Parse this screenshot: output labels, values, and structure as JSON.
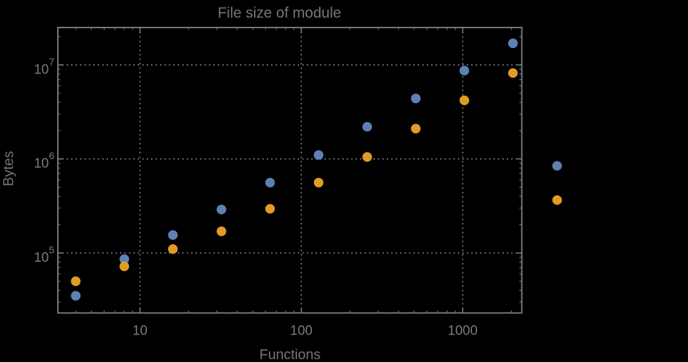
{
  "chart_data": {
    "type": "scatter",
    "title": "File size of module",
    "xlabel": "Functions",
    "ylabel": "Bytes",
    "x_scale": "log",
    "y_scale": "log",
    "xlim": [
      3.1,
      2325
    ],
    "ylim": [
      23000,
      25000000
    ],
    "grid": "dotted gray lines at major ticks only, frame on all four sides with mirrored ticks",
    "x_major_ticks": [
      10,
      100,
      1000
    ],
    "x_major_tick_labels": [
      "10",
      "100",
      "1000"
    ],
    "y_major_ticks": [
      100000,
      1000000,
      10000000
    ],
    "y_tick_base": "10",
    "y_major_tick_exponents": [
      "5",
      "6",
      "7"
    ],
    "x": [
      4,
      8,
      16,
      32,
      64,
      128,
      256,
      512,
      1024,
      2048
    ],
    "series": [
      {
        "name": "blue",
        "color": "#5E81B5",
        "values": [
          35000,
          86000,
          155000,
          290000,
          560000,
          1100000,
          2200000,
          4400000,
          8700000,
          17000000
        ]
      },
      {
        "name": "orange",
        "color": "#E19C24",
        "values": [
          50000,
          72000,
          110000,
          170000,
          295000,
          560000,
          1050000,
          2100000,
          4200000,
          8200000
        ]
      }
    ],
    "legend": {
      "position": "right-of-plot, vertically centered",
      "labels_visible": false,
      "markers": [
        {
          "series": "blue",
          "color": "#5E81B5"
        },
        {
          "series": "orange",
          "color": "#E19C24"
        }
      ]
    }
  },
  "colors": {
    "background": "#000000",
    "text": "#767676",
    "tick_text": "#7B7B7B",
    "frame": "#75797B",
    "gridline": "#8B9094",
    "series_blue": "#5E81B5",
    "series_orange": "#E19C24"
  }
}
